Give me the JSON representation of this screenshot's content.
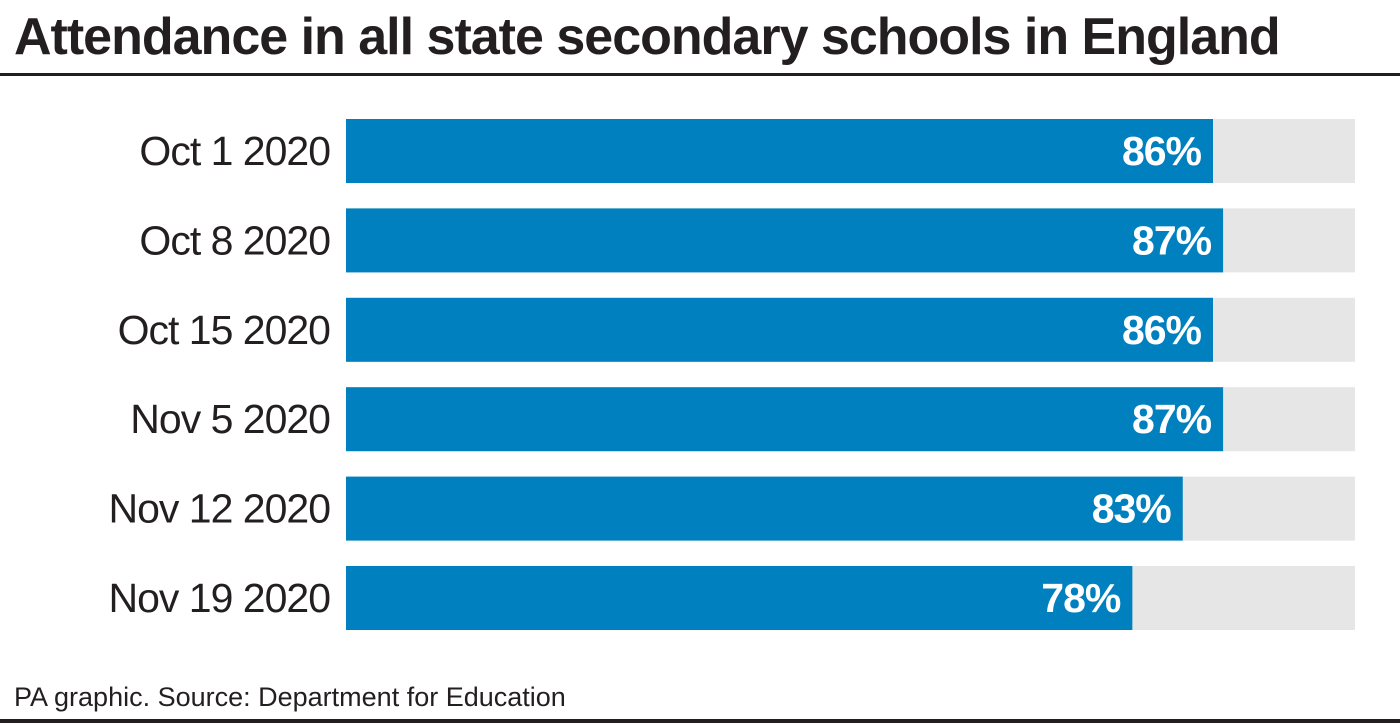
{
  "header": {
    "title": "Attendance in all state secondary schools in England"
  },
  "footer": {
    "source": "PA graphic. Source: Department for Education"
  },
  "colors": {
    "bar": "#0080bf",
    "track": "#e6e6e6",
    "text": "#231f20",
    "value_label": "#ffffff"
  },
  "chart_data": {
    "type": "bar",
    "orientation": "horizontal",
    "title": "Attendance in all state secondary schools in England",
    "categories": [
      "Oct 1 2020",
      "Oct 8 2020",
      "Oct 15 2020",
      "Nov 5 2020",
      "Nov 12 2020",
      "Nov 19 2020"
    ],
    "values": [
      86,
      87,
      86,
      87,
      83,
      78
    ],
    "value_labels": [
      "86%",
      "87%",
      "86%",
      "87%",
      "83%",
      "78%"
    ],
    "xlim": [
      0,
      100
    ],
    "unit": "%",
    "xlabel": "",
    "ylabel": "",
    "grid": false,
    "legend": "none"
  }
}
